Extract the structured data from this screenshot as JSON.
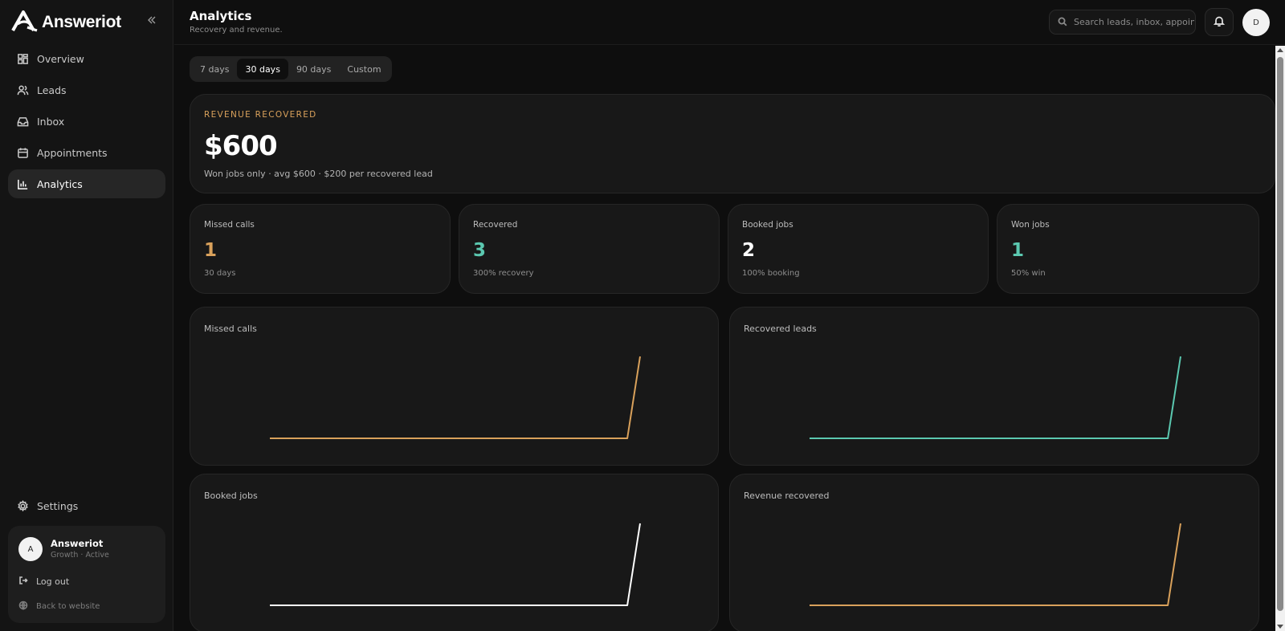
{
  "brand": {
    "name": "Answeriot",
    "logo_icon": "answeriot-logo"
  },
  "sidebar": {
    "collapse_icon": "double-chevron-left-icon",
    "items": [
      {
        "label": "Overview",
        "icon": "grid-icon",
        "active": false
      },
      {
        "label": "Leads",
        "icon": "users-icon",
        "active": false
      },
      {
        "label": "Inbox",
        "icon": "inbox-icon",
        "active": false
      },
      {
        "label": "Appointments",
        "icon": "calendar-icon",
        "active": false
      },
      {
        "label": "Analytics",
        "icon": "bar-chart-icon",
        "active": true
      }
    ],
    "settings_label": "Settings",
    "account": {
      "avatar_initial": "A",
      "name": "Answeriot",
      "plan": "Growth · Active",
      "logout_label": "Log out",
      "back_label": "Back to website"
    }
  },
  "header": {
    "title": "Analytics",
    "subtitle": "Recovery and revenue.",
    "search_placeholder": "Search leads, inbox, appointments...",
    "user_initial": "D"
  },
  "range_tabs": {
    "options": [
      "7 days",
      "30 days",
      "90 days",
      "Custom"
    ],
    "selected": "30 days"
  },
  "hero": {
    "label": "REVENUE RECOVERED",
    "value": "$600",
    "subtext": "Won jobs only · avg $600 · $200 per recovered lead"
  },
  "stats": [
    {
      "label": "Missed calls",
      "value": "1",
      "sub": "30 days",
      "color": "#d9a15b"
    },
    {
      "label": "Recovered",
      "value": "3",
      "sub": "300% recovery",
      "color": "#5bc8b0"
    },
    {
      "label": "Booked jobs",
      "value": "2",
      "sub": "100% booking",
      "color": "#ffffff"
    },
    {
      "label": "Won jobs",
      "value": "1",
      "sub": "50% win",
      "color": "#5bc8b0"
    }
  ],
  "colors": {
    "accent_orange": "#d9a15b",
    "accent_teal": "#5bc8b0",
    "line_white": "#ffffff"
  },
  "chart_data": [
    {
      "type": "line",
      "title": "Missed calls",
      "color": "#d9a15b",
      "x": [
        1,
        2,
        3,
        4,
        5,
        6,
        7,
        8,
        9,
        10,
        11,
        12,
        13,
        14,
        15,
        16,
        17,
        18,
        19,
        20,
        21,
        22,
        23,
        24,
        25,
        26,
        27,
        28,
        29,
        30
      ],
      "y": [
        0,
        0,
        0,
        0,
        0,
        0,
        0,
        0,
        0,
        0,
        0,
        0,
        0,
        0,
        0,
        0,
        0,
        0,
        0,
        0,
        0,
        0,
        0,
        0,
        0,
        0,
        0,
        0,
        0,
        1
      ]
    },
    {
      "type": "line",
      "title": "Recovered leads",
      "color": "#5bc8b0",
      "x": [
        1,
        2,
        3,
        4,
        5,
        6,
        7,
        8,
        9,
        10,
        11,
        12,
        13,
        14,
        15,
        16,
        17,
        18,
        19,
        20,
        21,
        22,
        23,
        24,
        25,
        26,
        27,
        28,
        29,
        30
      ],
      "y": [
        0,
        0,
        0,
        0,
        0,
        0,
        0,
        0,
        0,
        0,
        0,
        0,
        0,
        0,
        0,
        0,
        0,
        0,
        0,
        0,
        0,
        0,
        0,
        0,
        0,
        0,
        0,
        0,
        0,
        3
      ]
    },
    {
      "type": "line",
      "title": "Booked jobs",
      "color": "#ffffff",
      "x": [
        1,
        2,
        3,
        4,
        5,
        6,
        7,
        8,
        9,
        10,
        11,
        12,
        13,
        14,
        15,
        16,
        17,
        18,
        19,
        20,
        21,
        22,
        23,
        24,
        25,
        26,
        27,
        28,
        29,
        30
      ],
      "y": [
        0,
        0,
        0,
        0,
        0,
        0,
        0,
        0,
        0,
        0,
        0,
        0,
        0,
        0,
        0,
        0,
        0,
        0,
        0,
        0,
        0,
        0,
        0,
        0,
        0,
        0,
        0,
        0,
        0,
        2
      ]
    },
    {
      "type": "line",
      "title": "Revenue recovered",
      "color": "#d9a15b",
      "x": [
        1,
        2,
        3,
        4,
        5,
        6,
        7,
        8,
        9,
        10,
        11,
        12,
        13,
        14,
        15,
        16,
        17,
        18,
        19,
        20,
        21,
        22,
        23,
        24,
        25,
        26,
        27,
        28,
        29,
        30
      ],
      "y": [
        0,
        0,
        0,
        0,
        0,
        0,
        0,
        0,
        0,
        0,
        0,
        0,
        0,
        0,
        0,
        0,
        0,
        0,
        0,
        0,
        0,
        0,
        0,
        0,
        0,
        0,
        0,
        0,
        0,
        600
      ]
    }
  ]
}
